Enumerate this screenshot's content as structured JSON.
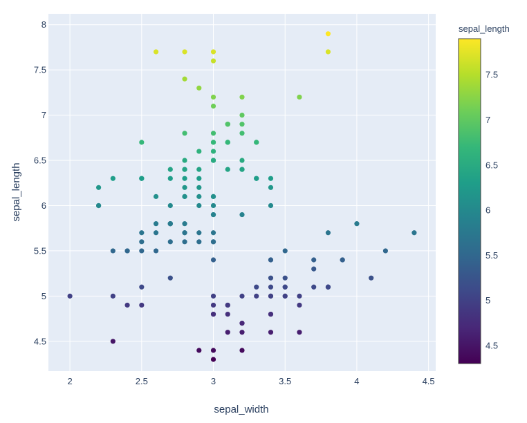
{
  "chart_data": {
    "type": "scatter",
    "xlabel": "sepal_width",
    "ylabel": "sepal_length",
    "xlim": [
      1.85,
      4.55
    ],
    "ylim": [
      4.17,
      8.12
    ],
    "xticks": [
      "2",
      "2.5",
      "3",
      "3.5",
      "4",
      "4.5"
    ],
    "xtick_values": [
      2,
      2.5,
      3,
      3.5,
      4,
      4.5
    ],
    "yticks": [
      "4.5",
      "5",
      "5.5",
      "6",
      "6.5",
      "7",
      "7.5",
      "8"
    ],
    "ytick_values": [
      4.5,
      5,
      5.5,
      6,
      6.5,
      7,
      7.5,
      8
    ],
    "grid": true,
    "background": "#e5ecf6",
    "gridcolor": "#ffffff",
    "colorscale": "Viridis",
    "colorscale_stops": [
      "#440154",
      "#482878",
      "#3e4989",
      "#31688e",
      "#26828e",
      "#1f9e89",
      "#35b779",
      "#6ece58",
      "#b5de2b",
      "#fde725"
    ],
    "colorbar": {
      "title": "sepal_length",
      "range": [
        4.3,
        7.9
      ],
      "ticks": [
        "4.5",
        "5",
        "5.5",
        "6",
        "6.5",
        "7",
        "7.5"
      ],
      "tick_values": [
        4.5,
        5,
        5.5,
        6,
        6.5,
        7,
        7.5
      ],
      "position": "right"
    },
    "points": [
      [
        3.5,
        5.1
      ],
      [
        3.0,
        4.9
      ],
      [
        3.2,
        4.7
      ],
      [
        3.1,
        4.6
      ],
      [
        3.6,
        5.0
      ],
      [
        3.9,
        5.4
      ],
      [
        3.4,
        4.6
      ],
      [
        3.4,
        5.0
      ],
      [
        2.9,
        4.4
      ],
      [
        3.1,
        4.9
      ],
      [
        3.7,
        5.4
      ],
      [
        3.4,
        4.8
      ],
      [
        3.0,
        4.8
      ],
      [
        3.0,
        4.3
      ],
      [
        4.0,
        5.8
      ],
      [
        4.4,
        5.7
      ],
      [
        3.9,
        5.4
      ],
      [
        3.5,
        5.1
      ],
      [
        3.8,
        5.7
      ],
      [
        3.8,
        5.1
      ],
      [
        3.4,
        5.4
      ],
      [
        3.7,
        5.1
      ],
      [
        3.6,
        4.6
      ],
      [
        3.3,
        5.1
      ],
      [
        3.4,
        4.8
      ],
      [
        3.0,
        5.0
      ],
      [
        3.4,
        5.0
      ],
      [
        3.5,
        5.2
      ],
      [
        3.4,
        5.2
      ],
      [
        3.2,
        4.7
      ],
      [
        3.1,
        4.8
      ],
      [
        3.4,
        5.4
      ],
      [
        4.1,
        5.2
      ],
      [
        4.2,
        5.5
      ],
      [
        3.1,
        4.9
      ],
      [
        3.2,
        5.0
      ],
      [
        3.5,
        5.5
      ],
      [
        3.6,
        4.9
      ],
      [
        3.0,
        4.4
      ],
      [
        3.4,
        5.1
      ],
      [
        3.5,
        5.0
      ],
      [
        2.3,
        4.5
      ],
      [
        3.2,
        4.4
      ],
      [
        3.5,
        5.0
      ],
      [
        3.8,
        5.1
      ],
      [
        3.0,
        4.8
      ],
      [
        3.8,
        5.1
      ],
      [
        3.2,
        4.6
      ],
      [
        3.7,
        5.3
      ],
      [
        3.3,
        5.0
      ],
      [
        3.2,
        7.0
      ],
      [
        3.2,
        6.4
      ],
      [
        3.1,
        6.9
      ],
      [
        2.3,
        5.5
      ],
      [
        2.8,
        6.5
      ],
      [
        2.8,
        5.7
      ],
      [
        3.3,
        6.3
      ],
      [
        2.4,
        4.9
      ],
      [
        2.9,
        6.6
      ],
      [
        2.7,
        5.2
      ],
      [
        2.0,
        5.0
      ],
      [
        3.0,
        5.9
      ],
      [
        2.2,
        6.0
      ],
      [
        2.9,
        6.1
      ],
      [
        2.9,
        5.6
      ],
      [
        3.1,
        6.7
      ],
      [
        3.0,
        5.6
      ],
      [
        2.7,
        5.8
      ],
      [
        2.2,
        6.2
      ],
      [
        2.5,
        5.6
      ],
      [
        3.2,
        5.9
      ],
      [
        2.8,
        6.1
      ],
      [
        2.5,
        6.3
      ],
      [
        2.8,
        6.1
      ],
      [
        2.9,
        6.4
      ],
      [
        3.0,
        6.6
      ],
      [
        2.8,
        6.8
      ],
      [
        3.0,
        6.7
      ],
      [
        2.9,
        6.0
      ],
      [
        2.6,
        5.7
      ],
      [
        2.4,
        5.5
      ],
      [
        2.4,
        5.5
      ],
      [
        2.7,
        5.8
      ],
      [
        2.7,
        6.0
      ],
      [
        3.0,
        5.4
      ],
      [
        3.4,
        6.0
      ],
      [
        3.1,
        6.7
      ],
      [
        2.3,
        6.3
      ],
      [
        3.0,
        5.6
      ],
      [
        2.5,
        5.5
      ],
      [
        2.6,
        5.5
      ],
      [
        3.0,
        6.1
      ],
      [
        2.6,
        5.8
      ],
      [
        2.3,
        5.0
      ],
      [
        2.7,
        5.6
      ],
      [
        3.0,
        5.7
      ],
      [
        2.9,
        5.7
      ],
      [
        2.9,
        6.2
      ],
      [
        2.5,
        5.1
      ],
      [
        2.8,
        5.7
      ],
      [
        3.3,
        6.3
      ],
      [
        2.7,
        5.8
      ],
      [
        3.0,
        7.1
      ],
      [
        2.9,
        6.3
      ],
      [
        3.0,
        6.5
      ],
      [
        3.0,
        7.6
      ],
      [
        2.5,
        4.9
      ],
      [
        2.9,
        7.3
      ],
      [
        2.5,
        6.7
      ],
      [
        3.6,
        7.2
      ],
      [
        3.2,
        6.5
      ],
      [
        2.7,
        6.4
      ],
      [
        3.0,
        6.8
      ],
      [
        2.5,
        5.7
      ],
      [
        2.8,
        5.8
      ],
      [
        3.2,
        6.4
      ],
      [
        3.0,
        6.5
      ],
      [
        3.8,
        7.7
      ],
      [
        2.6,
        7.7
      ],
      [
        2.2,
        6.0
      ],
      [
        3.2,
        6.9
      ],
      [
        2.8,
        5.6
      ],
      [
        2.8,
        7.7
      ],
      [
        2.7,
        6.3
      ],
      [
        3.3,
        6.7
      ],
      [
        3.2,
        7.2
      ],
      [
        2.8,
        6.2
      ],
      [
        3.0,
        6.1
      ],
      [
        2.8,
        6.4
      ],
      [
        3.0,
        7.2
      ],
      [
        2.8,
        7.4
      ],
      [
        3.8,
        7.9
      ],
      [
        2.8,
        6.4
      ],
      [
        2.8,
        6.3
      ],
      [
        2.6,
        6.1
      ],
      [
        3.0,
        7.7
      ],
      [
        3.4,
        6.3
      ],
      [
        3.1,
        6.4
      ],
      [
        3.0,
        6.0
      ],
      [
        3.1,
        6.9
      ],
      [
        3.1,
        6.7
      ],
      [
        3.1,
        6.9
      ],
      [
        2.7,
        5.8
      ],
      [
        3.2,
        6.8
      ],
      [
        3.3,
        6.7
      ],
      [
        3.0,
        6.7
      ],
      [
        2.5,
        6.3
      ],
      [
        3.0,
        6.5
      ],
      [
        3.4,
        6.2
      ],
      [
        3.0,
        5.9
      ]
    ]
  }
}
